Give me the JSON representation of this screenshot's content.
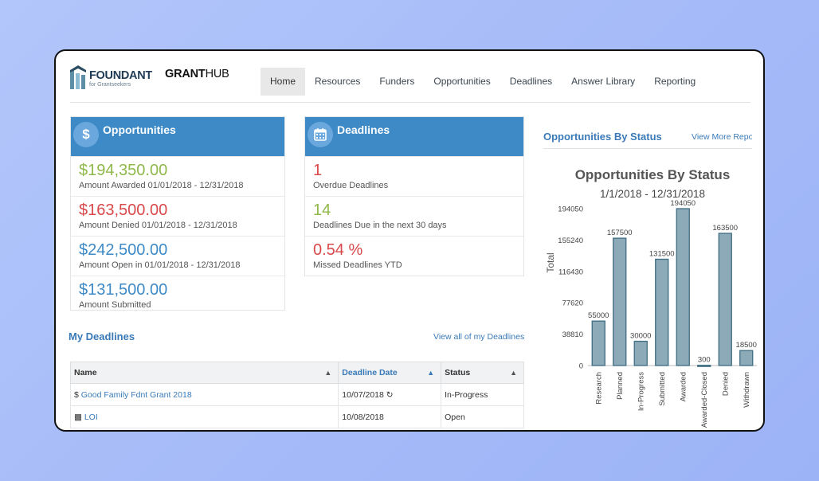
{
  "brand": {
    "foundant_word": "FOUNDANT",
    "foundant_sub": "for Grantseekers",
    "granthub_bold": "GRANT",
    "granthub_rest": "HUB"
  },
  "nav": {
    "items": [
      {
        "label": "Home",
        "active": true
      },
      {
        "label": "Resources"
      },
      {
        "label": "Funders"
      },
      {
        "label": "Opportunities"
      },
      {
        "label": "Deadlines"
      },
      {
        "label": "Answer Library"
      },
      {
        "label": "Reporting"
      }
    ]
  },
  "opportunities_card": {
    "title": "Opportunities",
    "icon": "dollar-icon",
    "stats": [
      {
        "value": "$194,350.00",
        "label": "Amount Awarded 01/01/2018 - 12/31/2018",
        "color": "#8fb84a"
      },
      {
        "value": "$163,500.00",
        "label": "Amount Denied 01/01/2018 - 12/31/2018",
        "color": "#d9484a"
      },
      {
        "value": "$242,500.00",
        "label": "Amount Open in 01/01/2018 - 12/31/2018",
        "color": "#3d8ac7"
      },
      {
        "value": "$131,500.00",
        "label": "Amount Submitted",
        "color": "#3d8ac7"
      }
    ]
  },
  "deadlines_card": {
    "title": "Deadlines",
    "icon": "calendar-icon",
    "stats": [
      {
        "value": "1",
        "label": "Overdue Deadlines",
        "color": "#d9484a"
      },
      {
        "value": "14",
        "label": "Deadlines Due in the next 30 days",
        "color": "#8fb84a"
      },
      {
        "value": "0.54 %",
        "label": "Missed Deadlines YTD",
        "color": "#d9484a"
      }
    ]
  },
  "my_deadlines": {
    "title": "My Deadlines",
    "view_all": "View all of my Deadlines",
    "columns": [
      "Name",
      "Deadline Date",
      "Status"
    ],
    "rows": [
      {
        "icon": "$",
        "name": "Good Family Fdnt Grant 2018",
        "date": "10/07/2018",
        "status": "In-Progress"
      },
      {
        "icon": "doc",
        "name": "LOI",
        "date": "10/08/2018",
        "status": "Open"
      }
    ]
  },
  "status_panel": {
    "title": "Opportunities By Status",
    "link": "View More Repo"
  },
  "chart_data": {
    "type": "bar",
    "title": "Opportunities By Status",
    "subtitle": "1/1/2018 - 12/31/2018",
    "ylabel": "Total",
    "xlabel": "",
    "categories": [
      "Research",
      "Planned",
      "In-Progress",
      "Submitted",
      "Awarded",
      "Awarded-Closed",
      "Denied",
      "Withdrawn"
    ],
    "values": [
      55000,
      157500,
      30000,
      131500,
      194050,
      300,
      163500,
      18500
    ],
    "yticks": [
      "0",
      "38810",
      "77620",
      "116430",
      "155240",
      "194050"
    ],
    "ylim": [
      0,
      194050
    ],
    "bar_color": "#8daab9",
    "bar_stroke": "#3f6d82"
  }
}
